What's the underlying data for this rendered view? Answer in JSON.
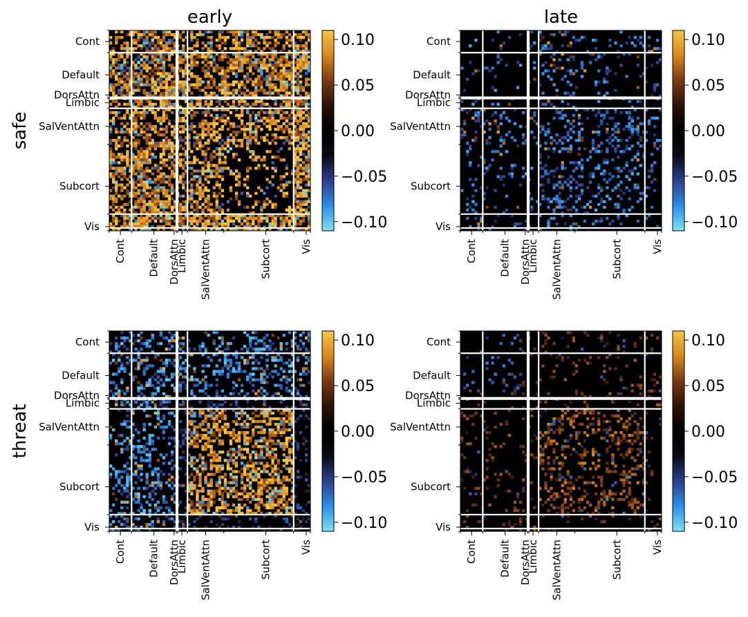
{
  "chart_data": {
    "type": "heatmap",
    "row_titles": [
      "safe",
      "threat"
    ],
    "column_titles": [
      "early",
      "late"
    ],
    "networks": [
      "Cont",
      "Default",
      "DorsAttn",
      "Limbic",
      "SalVentAttn",
      "Subcort",
      "Vis"
    ],
    "colorbar": {
      "range": [
        -0.11,
        0.11
      ],
      "ticks": [
        0.1,
        0.05,
        0.0,
        -0.05,
        -0.1
      ],
      "tick_labels": [
        "0.10",
        "0.05",
        "0.00",
        "−0.05",
        "−0.10"
      ],
      "colors": [
        "#7ee3ef",
        "#2a8fe8",
        "#2e3f8c",
        "#0a0a12",
        "#000000",
        "#2a1208",
        "#7a3a14",
        "#d9871e",
        "#f5c542"
      ]
    },
    "panels": [
      {
        "row": "safe",
        "column": "early",
        "pattern": "mostly strong positive (yellow), especially Default, SalVentAttn and Vis rows/columns"
      },
      {
        "row": "safe",
        "column": "late",
        "pattern": "sparse, mostly negative (blue), concentrated in SalVentAttn and Subcort"
      },
      {
        "row": "threat",
        "column": "early",
        "pattern": "negative (blue) in Cont/Default rows; strong positive (yellow) blocks between SalVentAttn and Subcort"
      },
      {
        "row": "threat",
        "column": "late",
        "pattern": "sparse, mild positive (orange) in SalVentAttn and Subcort, scattered blue"
      }
    ]
  }
}
